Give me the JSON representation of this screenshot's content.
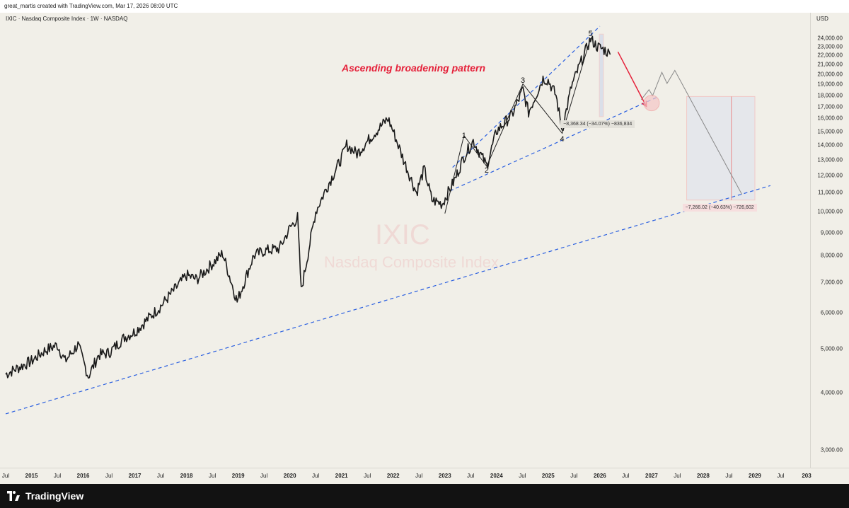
{
  "header": {
    "credit": "great_martis created with TradingView.com, Mar 17, 2026 08:00 UTC"
  },
  "legend": {
    "text": "IXIC · Nasdaq Composite Index · 1W · NASDAQ"
  },
  "watermark": {
    "symbol": "IXIC",
    "name": "Nasdaq Composite Index"
  },
  "axis": {
    "currency": "USD"
  },
  "annotations": {
    "title": "Ascending broadening pattern",
    "waves": [
      {
        "label": "1",
        "t": 2023.37,
        "p": 14680
      },
      {
        "label": "2",
        "t": 2023.81,
        "p": 12300
      },
      {
        "label": "3",
        "t": 2024.51,
        "p": 19350
      },
      {
        "label": "4",
        "t": 2025.27,
        "p": 14420
      },
      {
        "label": "5",
        "t": 2025.82,
        "p": 24500
      }
    ],
    "measure_1": "−8,368.34 (−34.07%) −836,834",
    "measure_2": "−7,266.02 (−40.63%) −726,602"
  },
  "footer": {
    "brand": "TradingView"
  },
  "colors": {
    "accent_red": "#e5213a",
    "trend_blue": "#2a5fe0",
    "candle": "#1a1a1a",
    "background": "#f1efe8",
    "footer": "#121212"
  },
  "chart_data": {
    "type": "candlestick-line",
    "title": "IXIC · Nasdaq Composite Index · 1W · NASDAQ",
    "ylabel": "USD",
    "y_scale": "log",
    "ylim": [
      3000,
      25500
    ],
    "y_ticks": [
      "3,000.00",
      "4,000.00",
      "5,000.00",
      "6,000.00",
      "7,000.00",
      "8,000.00",
      "9,000.00",
      "10,000.00",
      "11,000.00",
      "12,000.00",
      "13,000.00",
      "14,000.00",
      "15,000.00",
      "16,000.00",
      "17,000.00",
      "18,000.00",
      "19,000.00",
      "20,000.00",
      "21,000.00",
      "22,000.00",
      "23,000.00",
      "24,000.00"
    ],
    "x_ticks": [
      {
        "label": "Jul",
        "t": 2014.5
      },
      {
        "label": "2015",
        "t": 2015.0
      },
      {
        "label": "Jul",
        "t": 2015.5
      },
      {
        "label": "2016",
        "t": 2016.0
      },
      {
        "label": "Jul",
        "t": 2016.5
      },
      {
        "label": "2017",
        "t": 2017.0
      },
      {
        "label": "Jul",
        "t": 2017.5
      },
      {
        "label": "2018",
        "t": 2018.0
      },
      {
        "label": "Jul",
        "t": 2018.5
      },
      {
        "label": "2019",
        "t": 2019.0
      },
      {
        "label": "Jul",
        "t": 2019.5
      },
      {
        "label": "2020",
        "t": 2020.0
      },
      {
        "label": "Jul",
        "t": 2020.5
      },
      {
        "label": "2021",
        "t": 2021.0
      },
      {
        "label": "Jul",
        "t": 2021.5
      },
      {
        "label": "2022",
        "t": 2022.0
      },
      {
        "label": "Jul",
        "t": 2022.5
      },
      {
        "label": "2023",
        "t": 2023.0
      },
      {
        "label": "Jul",
        "t": 2023.5
      },
      {
        "label": "2024",
        "t": 2024.0
      },
      {
        "label": "Jul",
        "t": 2024.5
      },
      {
        "label": "2025",
        "t": 2025.0
      },
      {
        "label": "Jul",
        "t": 2025.5
      },
      {
        "label": "2026",
        "t": 2026.0
      },
      {
        "label": "Jul",
        "t": 2026.5
      },
      {
        "label": "2027",
        "t": 2027.0
      },
      {
        "label": "Jul",
        "t": 2027.5
      },
      {
        "label": "2028",
        "t": 2028.0
      },
      {
        "label": "Jul",
        "t": 2028.5
      },
      {
        "label": "2029",
        "t": 2029.0
      },
      {
        "label": "Jul",
        "t": 2029.5
      },
      {
        "label": "203",
        "t": 2030.0
      }
    ],
    "price_path": [
      [
        2014.5,
        4400
      ],
      [
        2014.75,
        4550
      ],
      [
        2015.0,
        4700
      ],
      [
        2015.25,
        4950
      ],
      [
        2015.5,
        5100
      ],
      [
        2015.65,
        4700
      ],
      [
        2015.9,
        5100
      ],
      [
        2016.1,
        4350
      ],
      [
        2016.3,
        4850
      ],
      [
        2016.5,
        4900
      ],
      [
        2016.8,
        5300
      ],
      [
        2017.0,
        5450
      ],
      [
        2017.5,
        6200
      ],
      [
        2018.0,
        7250
      ],
      [
        2018.2,
        7100
      ],
      [
        2018.7,
        8100
      ],
      [
        2018.98,
        6350
      ],
      [
        2019.3,
        8000
      ],
      [
        2019.5,
        8200
      ],
      [
        2019.8,
        8300
      ],
      [
        2020.0,
        9200
      ],
      [
        2020.15,
        9700
      ],
      [
        2020.22,
        6700
      ],
      [
        2020.5,
        10000
      ],
      [
        2020.7,
        11200
      ],
      [
        2021.0,
        13100
      ],
      [
        2021.1,
        14000
      ],
      [
        2021.3,
        13400
      ],
      [
        2021.6,
        14700
      ],
      [
        2021.9,
        16000
      ],
      [
        2022.0,
        15000
      ],
      [
        2022.2,
        13000
      ],
      [
        2022.45,
        11000
      ],
      [
        2022.6,
        12400
      ],
      [
        2022.75,
        10600
      ],
      [
        2022.95,
        10400
      ],
      [
        2023.2,
        11800
      ],
      [
        2023.37,
        13200
      ],
      [
        2023.55,
        14300
      ],
      [
        2023.81,
        12600
      ],
      [
        2024.0,
        15000
      ],
      [
        2024.3,
        16300
      ],
      [
        2024.51,
        18500
      ],
      [
        2024.62,
        16500
      ],
      [
        2024.9,
        19600
      ],
      [
        2025.0,
        19400
      ],
      [
        2025.15,
        18000
      ],
      [
        2025.27,
        15100
      ],
      [
        2025.45,
        18800
      ],
      [
        2025.6,
        20800
      ],
      [
        2025.82,
        23900
      ],
      [
        2025.95,
        23000
      ],
      [
        2026.1,
        22600
      ],
      [
        2026.2,
        22100
      ]
    ],
    "wave_path": [
      [
        2023.0,
        9900
      ],
      [
        2023.37,
        14680
      ],
      [
        2023.81,
        12570
      ],
      [
        2024.51,
        19050
      ],
      [
        2025.27,
        14850
      ],
      [
        2025.82,
        24000
      ]
    ],
    "projection_path": [
      [
        2026.8,
        17600
      ],
      [
        2026.95,
        18500
      ],
      [
        2027.02,
        17950
      ],
      [
        2027.2,
        20200
      ],
      [
        2027.3,
        19100
      ],
      [
        2027.45,
        20400
      ],
      [
        2028.75,
        10900
      ]
    ],
    "trendlines": [
      {
        "name": "upper",
        "from": [
          2023.15,
          12500
        ],
        "to": [
          2026.0,
          25500
        ]
      },
      {
        "name": "lower",
        "from": [
          2023.1,
          11100
        ],
        "to": [
          2027.1,
          17800
        ]
      },
      {
        "name": "long-term support",
        "from": [
          2014.5,
          3600
        ],
        "to": [
          2029.3,
          11400
        ]
      }
    ],
    "forecast_arrow": {
      "from": [
        2026.35,
        22400
      ],
      "to": [
        2026.9,
        17000
      ]
    },
    "target_circle": {
      "t": 2027.0,
      "p": 17300
    },
    "measure_rect_1": {
      "t0": 2025.99,
      "t1": 2026.07,
      "p_top": 24500,
      "p_bottom": 16150
    },
    "measure_rect_2": {
      "t0": 2027.68,
      "t1": 2029.0,
      "p_top": 17880,
      "p_bottom": 10600
    }
  }
}
